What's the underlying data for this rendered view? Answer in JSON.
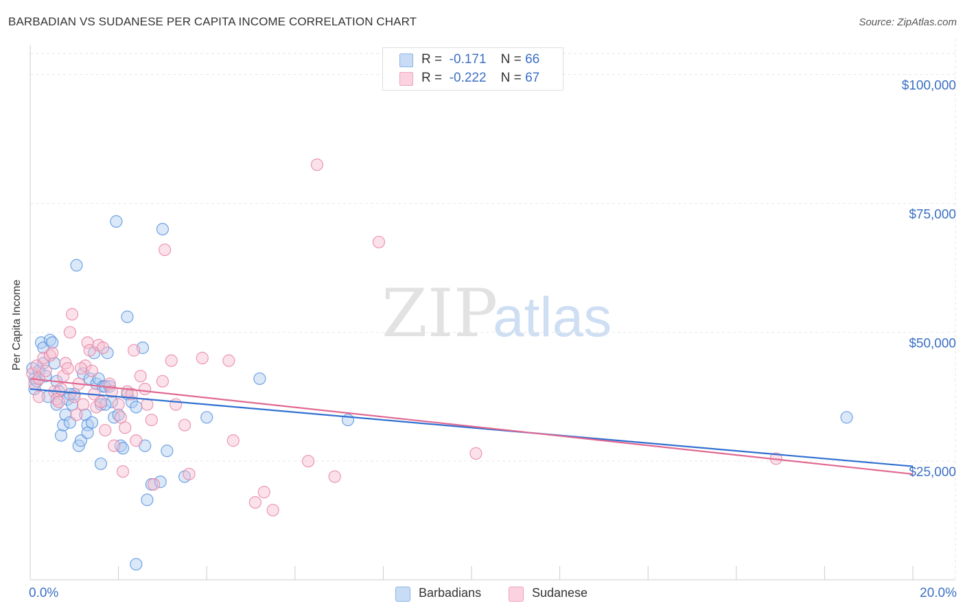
{
  "header": {
    "title": "BARBADIAN VS SUDANESE PER CAPITA INCOME CORRELATION CHART",
    "source": "Source: ZipAtlas.com"
  },
  "watermark": {
    "zip": "ZIP",
    "atlas": "atlas"
  },
  "legend_stats": [
    {
      "r_label": "R =",
      "r_value": "-0.171",
      "n_label": "N =",
      "n_value": "66",
      "color": "#8ab4e8"
    },
    {
      "r_label": "R =",
      "r_value": "-0.222",
      "n_label": "N =",
      "n_value": "67",
      "color": "#f2a0bb"
    }
  ],
  "chart_data": {
    "type": "scatter",
    "title": "BARBADIAN VS SUDANESE PER CAPITA INCOME CORRELATION CHART",
    "xlabel": "",
    "ylabel": "Per Capita Income",
    "xlim": [
      0,
      20
    ],
    "ylim": [
      2000,
      107000
    ],
    "x_tick_labels": [
      {
        "value": 0,
        "label": "0.0%"
      },
      {
        "value": 20,
        "label": "20.0%"
      }
    ],
    "y_tick_labels": [
      {
        "value": 25000,
        "label": "$25,000"
      },
      {
        "value": 50000,
        "label": "$50,000"
      },
      {
        "value": 75000,
        "label": "$75,000"
      },
      {
        "value": 100000,
        "label": "$100,000"
      }
    ],
    "grid": true,
    "legend_position": "bottom-center",
    "series": [
      {
        "name": "Barbadians",
        "color": "#5b93e0",
        "fill": "#aecbf0",
        "line_color": "#2f6fd0",
        "trend": {
          "x": [
            0,
            20
          ],
          "y": [
            39000,
            24000
          ]
        },
        "points": [
          [
            0.05,
            43000
          ],
          [
            0.1,
            41000
          ],
          [
            0.1,
            39000
          ],
          [
            0.15,
            40500
          ],
          [
            0.2,
            42500
          ],
          [
            0.25,
            48000
          ],
          [
            0.3,
            47000
          ],
          [
            0.35,
            41500
          ],
          [
            0.4,
            37500
          ],
          [
            0.45,
            48500
          ],
          [
            0.5,
            48000
          ],
          [
            0.55,
            44000
          ],
          [
            0.6,
            40500
          ],
          [
            0.65,
            38500
          ],
          [
            0.7,
            30000
          ],
          [
            0.75,
            32000
          ],
          [
            0.8,
            34000
          ],
          [
            0.85,
            37000
          ],
          [
            0.9,
            32500
          ],
          [
            0.95,
            36000
          ],
          [
            1.0,
            38000
          ],
          [
            1.05,
            63000
          ],
          [
            1.1,
            28000
          ],
          [
            1.15,
            29000
          ],
          [
            1.2,
            42000
          ],
          [
            1.25,
            34000
          ],
          [
            1.3,
            32000
          ],
          [
            1.3,
            30500
          ],
          [
            1.35,
            41000
          ],
          [
            1.4,
            32500
          ],
          [
            1.45,
            46000
          ],
          [
            1.5,
            40000
          ],
          [
            1.55,
            41000
          ],
          [
            1.6,
            24500
          ],
          [
            1.6,
            36000
          ],
          [
            1.65,
            39500
          ],
          [
            1.7,
            39500
          ],
          [
            1.75,
            46000
          ],
          [
            1.8,
            39500
          ],
          [
            1.9,
            33500
          ],
          [
            1.85,
            36500
          ],
          [
            1.95,
            71500
          ],
          [
            2.0,
            34000
          ],
          [
            2.05,
            28000
          ],
          [
            2.1,
            27500
          ],
          [
            2.2,
            38000
          ],
          [
            2.2,
            53000
          ],
          [
            2.3,
            36500
          ],
          [
            2.4,
            35500
          ],
          [
            2.4,
            5000
          ],
          [
            2.6,
            28000
          ],
          [
            2.65,
            17500
          ],
          [
            2.75,
            20500
          ],
          [
            2.95,
            21000
          ],
          [
            3.0,
            70000
          ],
          [
            3.1,
            27000
          ],
          [
            3.5,
            22000
          ],
          [
            4.0,
            33500
          ],
          [
            5.2,
            41000
          ],
          [
            7.2,
            33000
          ],
          [
            18.5,
            33500
          ],
          [
            0.3,
            44000
          ],
          [
            0.6,
            36000
          ],
          [
            0.9,
            38000
          ],
          [
            1.7,
            36000
          ],
          [
            2.55,
            47000
          ]
        ]
      },
      {
        "name": "Sudanese",
        "color": "#e985a5",
        "fill": "#f7bfd0",
        "line_color": "#e06890",
        "trend": {
          "x": [
            0,
            20
          ],
          "y": [
            41000,
            22500
          ]
        },
        "points": [
          [
            0.05,
            42000
          ],
          [
            0.1,
            40000
          ],
          [
            0.15,
            43500
          ],
          [
            0.2,
            41000
          ],
          [
            0.3,
            45000
          ],
          [
            0.35,
            42500
          ],
          [
            0.45,
            45500
          ],
          [
            0.5,
            46000
          ],
          [
            0.55,
            38500
          ],
          [
            0.6,
            37000
          ],
          [
            0.65,
            36500
          ],
          [
            0.7,
            39000
          ],
          [
            0.75,
            41500
          ],
          [
            0.8,
            44000
          ],
          [
            0.85,
            43000
          ],
          [
            0.9,
            50000
          ],
          [
            0.95,
            53500
          ],
          [
            1.0,
            37500
          ],
          [
            1.05,
            34000
          ],
          [
            1.1,
            40000
          ],
          [
            1.2,
            36000
          ],
          [
            1.25,
            43500
          ],
          [
            1.3,
            48000
          ],
          [
            1.35,
            46500
          ],
          [
            1.4,
            42500
          ],
          [
            1.45,
            38000
          ],
          [
            1.5,
            35500
          ],
          [
            1.55,
            47500
          ],
          [
            1.6,
            36500
          ],
          [
            1.65,
            47000
          ],
          [
            1.7,
            31000
          ],
          [
            1.8,
            40000
          ],
          [
            1.85,
            38500
          ],
          [
            1.9,
            28000
          ],
          [
            2.0,
            36000
          ],
          [
            2.05,
            33500
          ],
          [
            2.1,
            23000
          ],
          [
            2.15,
            31500
          ],
          [
            2.2,
            38500
          ],
          [
            2.3,
            38000
          ],
          [
            2.35,
            46500
          ],
          [
            2.4,
            29000
          ],
          [
            2.5,
            41500
          ],
          [
            2.6,
            39000
          ],
          [
            2.65,
            36000
          ],
          [
            2.75,
            33000
          ],
          [
            2.8,
            20500
          ],
          [
            3.0,
            40500
          ],
          [
            3.05,
            66000
          ],
          [
            3.2,
            44500
          ],
          [
            3.3,
            36000
          ],
          [
            3.5,
            32000
          ],
          [
            3.6,
            22500
          ],
          [
            3.9,
            45000
          ],
          [
            4.5,
            44500
          ],
          [
            4.6,
            29000
          ],
          [
            5.1,
            17000
          ],
          [
            5.3,
            19000
          ],
          [
            5.5,
            15500
          ],
          [
            6.3,
            25000
          ],
          [
            6.5,
            82500
          ],
          [
            6.9,
            22000
          ],
          [
            7.9,
            67500
          ],
          [
            10.1,
            26500
          ],
          [
            16.9,
            25500
          ],
          [
            0.2,
            37500
          ],
          [
            1.15,
            43000
          ]
        ]
      }
    ]
  }
}
